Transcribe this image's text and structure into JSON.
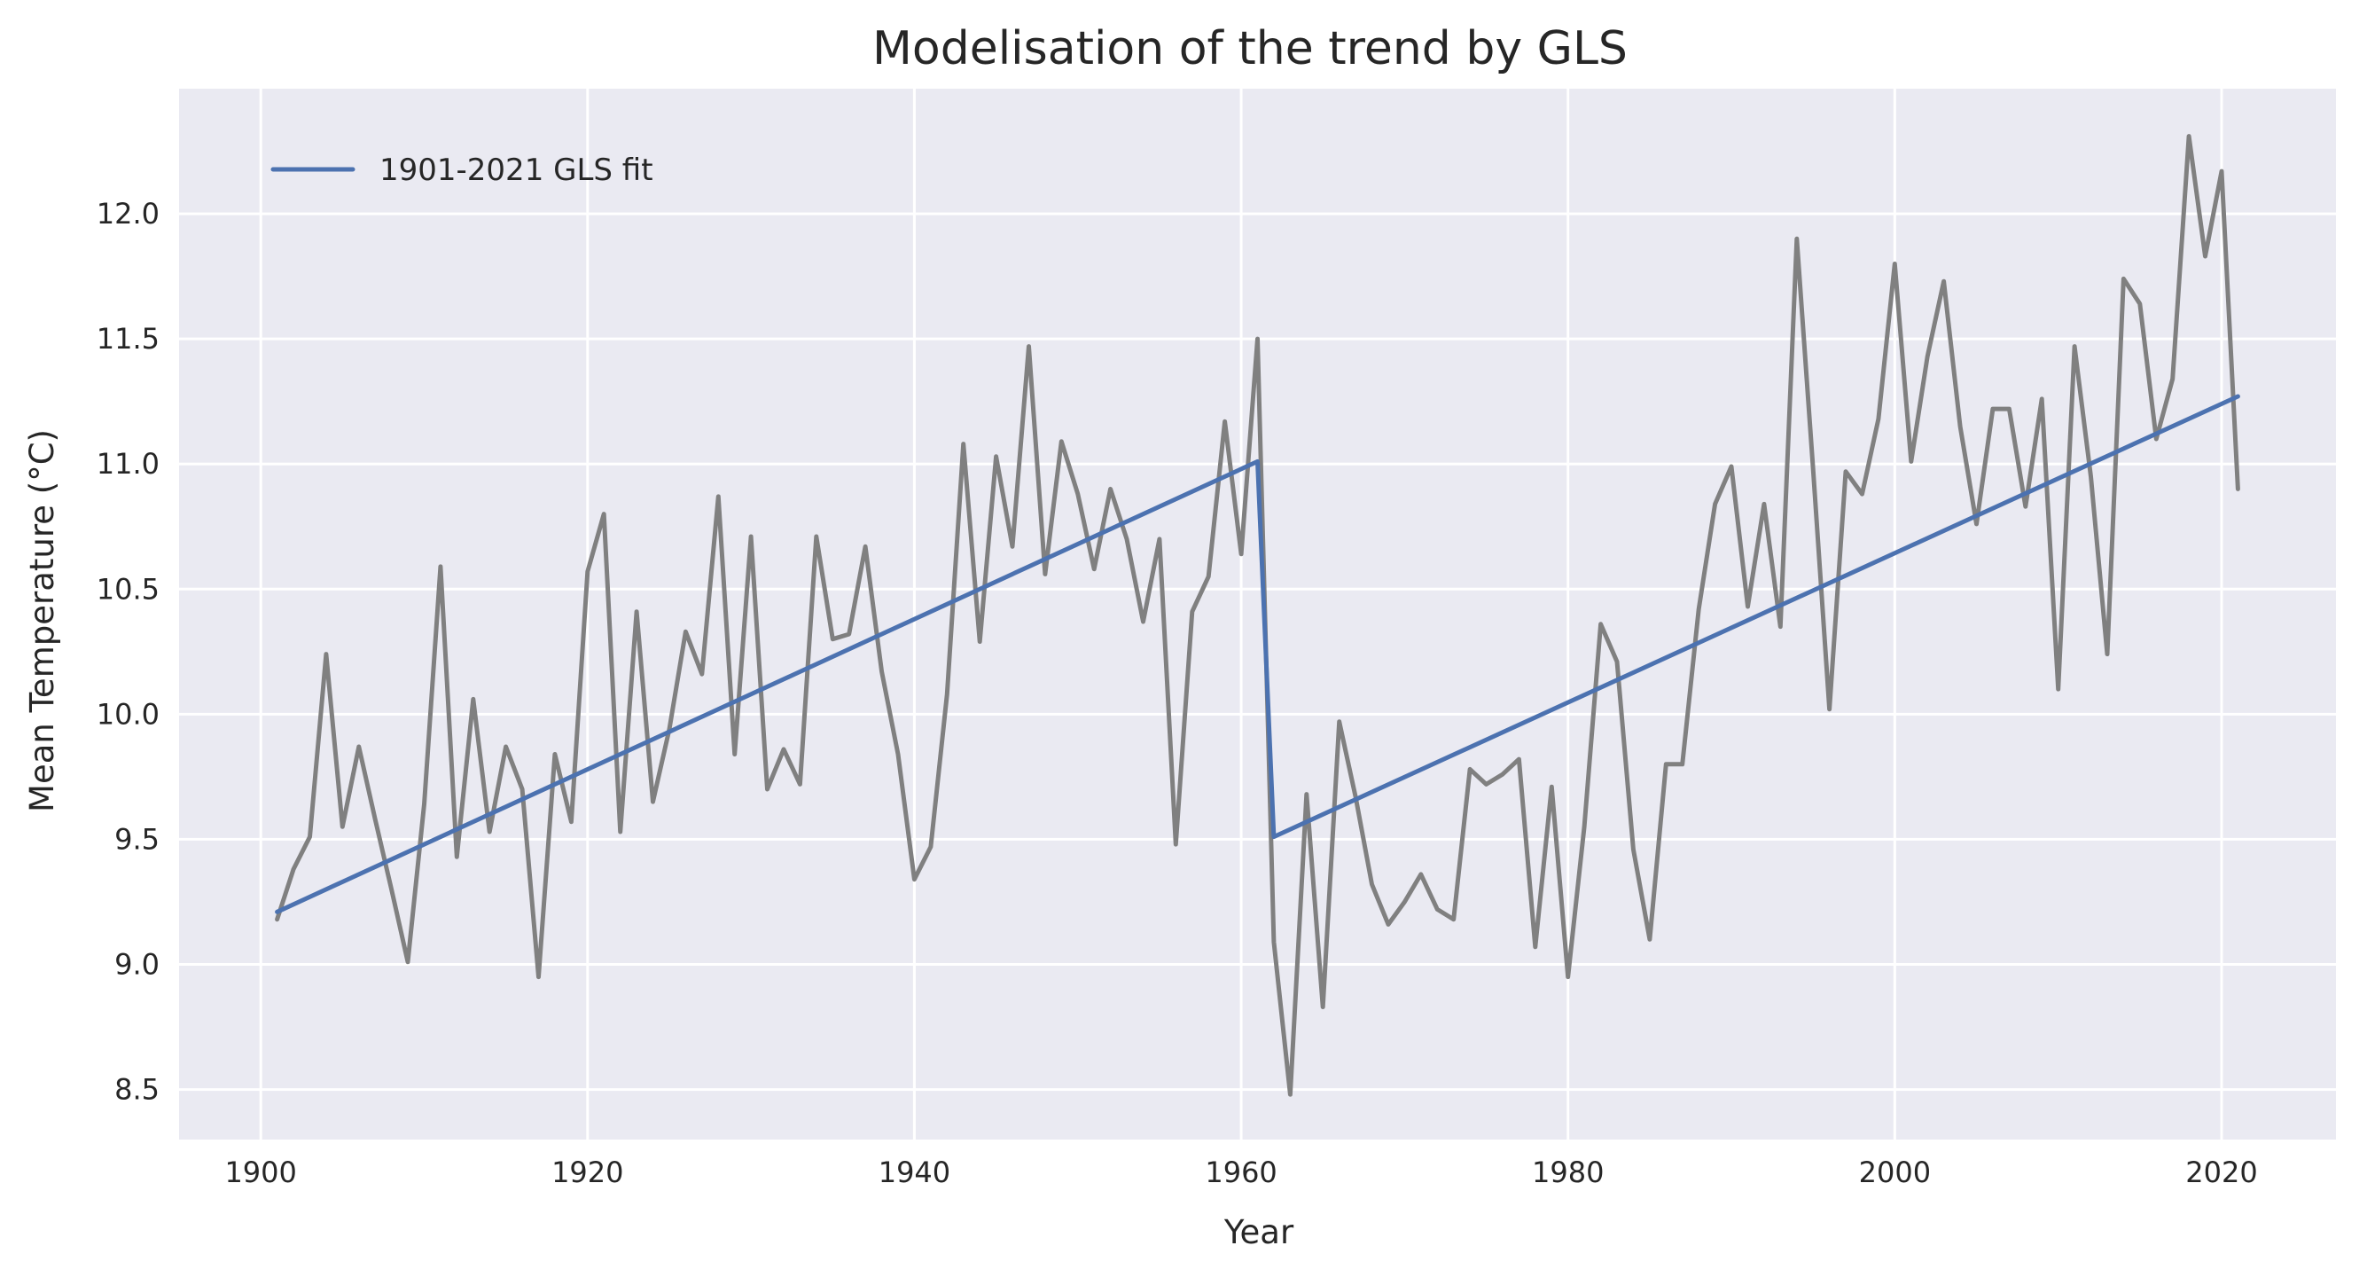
{
  "chart_data": {
    "type": "line",
    "title": "Modelisation of the trend by GLS",
    "xlabel": "Year",
    "ylabel": "Mean Temperature (°C)",
    "xlim": [
      1895,
      2027
    ],
    "ylim": [
      8.3,
      12.5
    ],
    "xticks": [
      1900,
      1920,
      1940,
      1960,
      1980,
      2000,
      2020
    ],
    "yticks": [
      8.5,
      9.0,
      9.5,
      10.0,
      10.5,
      11.0,
      11.5,
      12.0
    ],
    "ytick_labels": [
      "8.5",
      "9.0",
      "9.5",
      "10.0",
      "10.5",
      "11.0",
      "11.5",
      "12.0"
    ],
    "grid": true,
    "legend_placement": "top-left",
    "colors": {
      "background": "#eaeaf2",
      "grid": "#ffffff",
      "observed": "#808080",
      "fit": "#4c72b0"
    },
    "series": [
      {
        "role": "observed",
        "color": "#808080",
        "x": [
          1901,
          1902,
          1903,
          1904,
          1905,
          1906,
          1907,
          1908,
          1909,
          1910,
          1911,
          1912,
          1913,
          1914,
          1915,
          1916,
          1917,
          1918,
          1919,
          1920,
          1921,
          1922,
          1923,
          1924,
          1925,
          1926,
          1927,
          1928,
          1929,
          1930,
          1931,
          1932,
          1933,
          1934,
          1935,
          1936,
          1937,
          1938,
          1939,
          1940,
          1941,
          1942,
          1943,
          1944,
          1945,
          1946,
          1947,
          1948,
          1949,
          1950,
          1951,
          1952,
          1953,
          1954,
          1955,
          1956,
          1957,
          1958,
          1959,
          1960,
          1961,
          1962,
          1963,
          1964,
          1965,
          1966,
          1967,
          1968,
          1969,
          1970,
          1971,
          1972,
          1973,
          1974,
          1975,
          1976,
          1977,
          1978,
          1979,
          1980,
          1981,
          1982,
          1983,
          1984,
          1985,
          1986,
          1987,
          1988,
          1989,
          1990,
          1991,
          1992,
          1993,
          1994,
          1995,
          1996,
          1997,
          1998,
          1999,
          2000,
          2001,
          2002,
          2003,
          2004,
          2005,
          2006,
          2007,
          2008,
          2009,
          2010,
          2011,
          2012,
          2013,
          2014,
          2015,
          2016,
          2017,
          2018,
          2019,
          2020,
          2021
        ],
        "values": [
          9.18,
          9.38,
          9.51,
          10.24,
          9.55,
          9.87,
          9.58,
          9.3,
          9.01,
          9.64,
          10.59,
          9.43,
          10.06,
          9.53,
          9.87,
          9.7,
          8.95,
          9.84,
          9.57,
          10.57,
          10.8,
          9.53,
          10.41,
          9.65,
          9.94,
          10.33,
          10.16,
          10.87,
          9.84,
          10.71,
          9.7,
          9.86,
          9.72,
          10.71,
          10.3,
          10.32,
          10.67,
          10.17,
          9.84,
          9.34,
          9.47,
          10.08,
          11.08,
          10.29,
          11.03,
          10.67,
          11.47,
          10.56,
          11.09,
          10.88,
          10.58,
          10.9,
          10.7,
          10.37,
          10.7,
          9.48,
          10.41,
          10.55,
          11.17,
          10.64,
          11.5,
          9.09,
          8.48,
          9.68,
          8.83,
          9.97,
          9.67,
          9.32,
          9.16,
          9.25,
          9.36,
          9.22,
          9.18,
          9.78,
          9.72,
          9.76,
          9.82,
          9.07,
          9.71,
          8.95,
          9.55,
          10.36,
          10.21,
          9.46,
          9.1,
          9.8,
          9.8,
          10.42,
          10.84,
          10.99,
          10.43,
          10.84,
          10.35,
          11.9,
          10.98,
          10.02,
          10.97,
          10.88,
          11.18,
          11.8,
          11.01,
          11.43,
          11.73,
          11.15,
          10.76,
          11.22,
          11.22,
          10.83,
          11.26,
          10.1,
          11.47,
          10.95,
          10.24,
          11.74,
          11.64,
          11.1,
          11.34,
          12.31,
          11.83,
          12.17,
          10.9
        ]
      },
      {
        "name": "1901-2021 GLS fit",
        "role": "fit",
        "color": "#4c72b0",
        "x": [
          1901,
          1961,
          1962,
          2021
        ],
        "values": [
          9.21,
          11.01,
          9.51,
          11.27
        ]
      }
    ]
  }
}
